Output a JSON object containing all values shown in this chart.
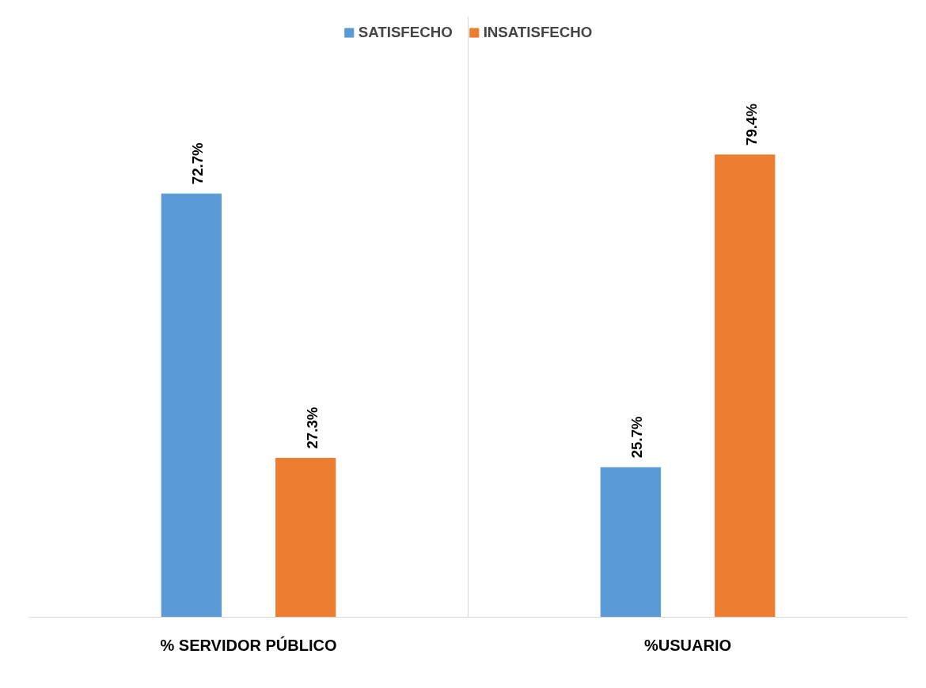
{
  "chart_data": {
    "type": "bar",
    "categories": [
      "% SERVIDOR PÚBLICO",
      "%USUARIO"
    ],
    "series": [
      {
        "name": "SATISFECHO",
        "color": "#5b9bd5",
        "values": [
          72.7,
          25.7
        ],
        "value_labels": [
          "72.7%",
          "25.7%"
        ]
      },
      {
        "name": "INSATISFECHO",
        "color": "#ed7d31",
        "values": [
          27.3,
          79.4
        ],
        "value_labels": [
          "27.3%",
          "79.4%"
        ]
      }
    ],
    "legend": "top",
    "grid": "x"
  }
}
